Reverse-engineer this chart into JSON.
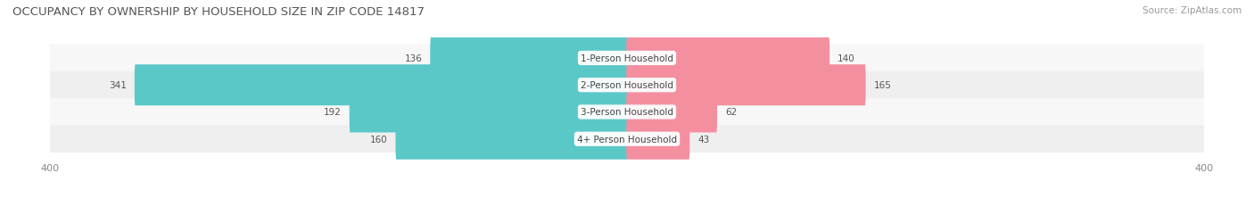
{
  "title": "OCCUPANCY BY OWNERSHIP BY HOUSEHOLD SIZE IN ZIP CODE 14817",
  "source": "Source: ZipAtlas.com",
  "categories": [
    "1-Person Household",
    "2-Person Household",
    "3-Person Household",
    "4+ Person Household"
  ],
  "owner_values": [
    136,
    341,
    192,
    160
  ],
  "renter_values": [
    140,
    165,
    62,
    43
  ],
  "owner_color": "#5BC8C8",
  "renter_color": "#F48FA0",
  "xlim": 400,
  "bar_height": 0.52,
  "title_fontsize": 9.5,
  "label_fontsize": 7.5,
  "axis_label_fontsize": 8,
  "legend_fontsize": 8,
  "source_fontsize": 7.5,
  "background_color": "#FFFFFF",
  "row_colors": [
    "#F7F7F7",
    "#EFEFEF"
  ]
}
